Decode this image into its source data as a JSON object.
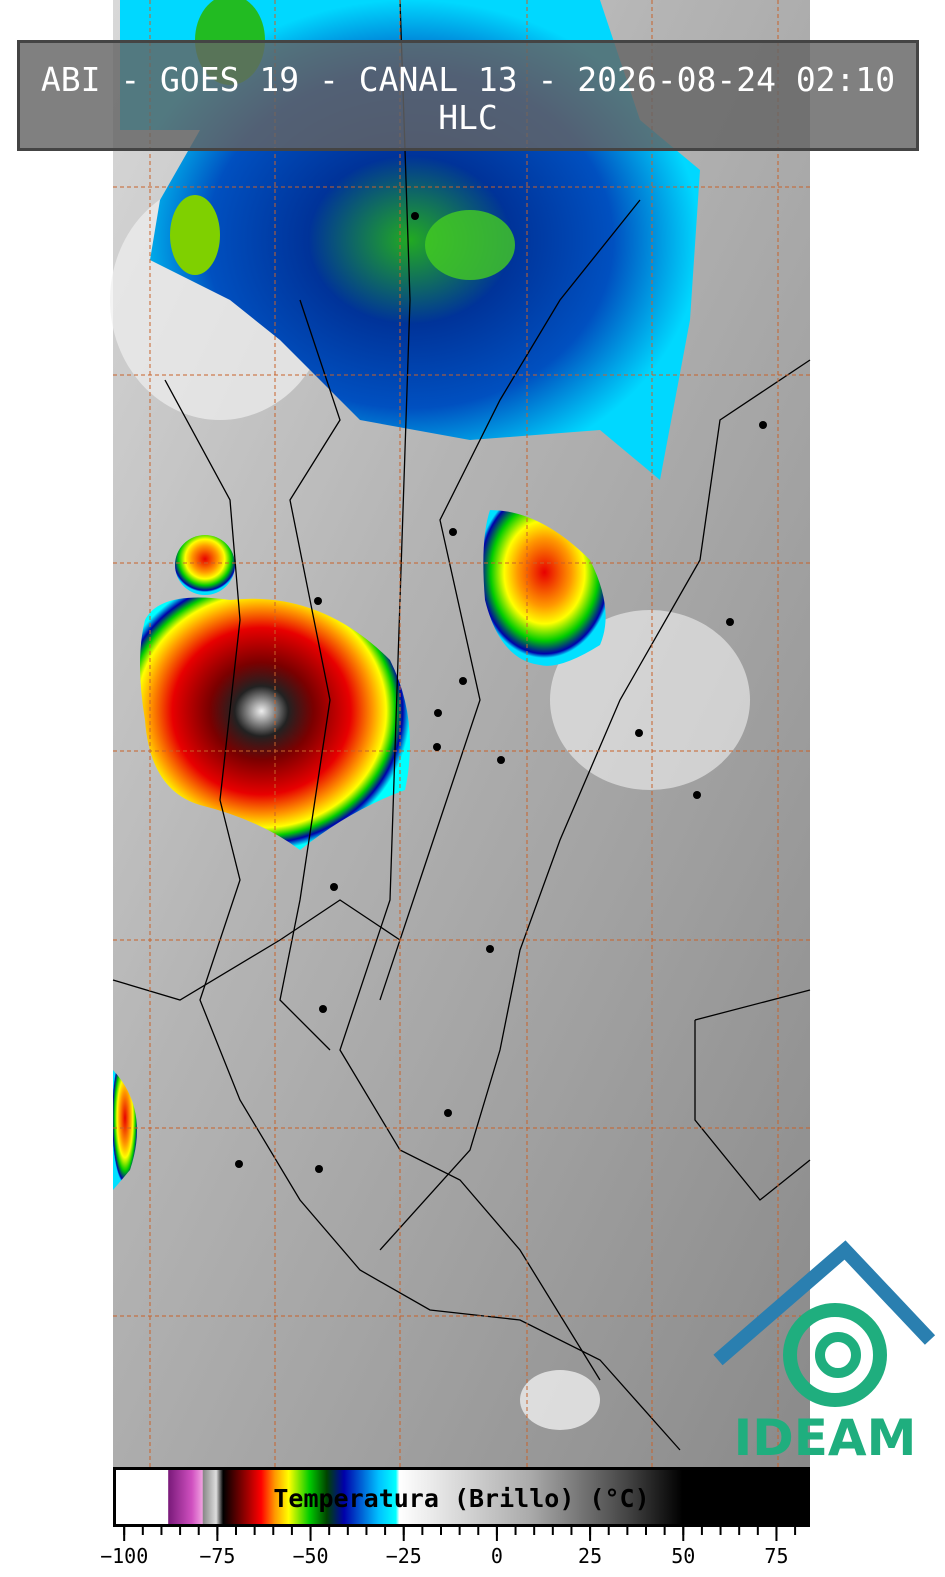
{
  "header": {
    "title": "ABI - GOES 19 - CANAL 13 - 2026-08-24 02:10",
    "subtitle": "HLC"
  },
  "colorbar": {
    "label": "Temperatura (Brillo) (°C)",
    "xlim": [
      -103,
      84
    ],
    "ticks": [
      {
        "value": -100,
        "label": "−100"
      },
      {
        "value": -75,
        "label": "−75"
      },
      {
        "value": -50,
        "label": "−50"
      },
      {
        "value": -25,
        "label": "−25"
      },
      0,
      25,
      50,
      75
    ],
    "minor_ticks": [
      -100,
      -95,
      -90,
      -85,
      -80,
      -75,
      -70,
      -65,
      -60,
      -55,
      -50,
      -45,
      -40,
      -35,
      -30,
      -25,
      -20,
      -15,
      -10,
      -5,
      0,
      5,
      10,
      15,
      20,
      25,
      30,
      35,
      40,
      45,
      50,
      55,
      60,
      65,
      70,
      75,
      80
    ]
  },
  "logo": {
    "text": "IDEAM"
  }
}
